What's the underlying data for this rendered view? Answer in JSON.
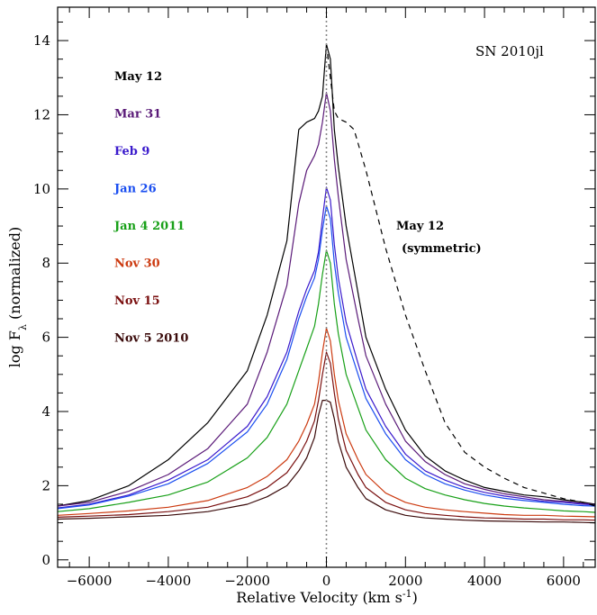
{
  "chart_data": {
    "type": "line",
    "title": "SN 2010jl",
    "xlabel": "Relative Velocity (km s",
    "xlabel_sup": "-1",
    "xlabel_end": ")",
    "ylabel": "log F",
    "ylabel_sub": "λ",
    "ylabel_end": " (normalized)",
    "xlim": [
      -6800,
      6800
    ],
    "ylim": [
      -0.2,
      14.9
    ],
    "xticks": [
      -6000,
      -4000,
      -2000,
      0,
      2000,
      4000,
      6000
    ],
    "xtick_labels": [
      "−6000",
      "−4000",
      "−2000",
      "0",
      "2000",
      "4000",
      "6000"
    ],
    "yticks": [
      0,
      2,
      4,
      6,
      8,
      10,
      12,
      14
    ],
    "ytick_labels": [
      "0",
      "2",
      "4",
      "6",
      "8",
      "10",
      "12",
      "14"
    ],
    "zero_line": 0,
    "annotation": {
      "line1": "May 12",
      "line2": "(symmetric)"
    },
    "series": [
      {
        "name": "May 12",
        "color": "#000000",
        "x": [
          -6800,
          -6000,
          -5000,
          -4000,
          -3000,
          -2000,
          -1500,
          -1000,
          -700,
          -500,
          -300,
          -200,
          -100,
          0,
          100,
          200,
          300,
          500,
          800,
          1000,
          1500,
          2000,
          2500,
          3000,
          3500,
          4000,
          4500,
          5000,
          5500,
          6000,
          6500,
          6800
        ],
        "y": [
          1.45,
          1.6,
          2.0,
          2.7,
          3.7,
          5.1,
          6.6,
          8.6,
          11.6,
          11.8,
          11.9,
          12.1,
          12.5,
          13.9,
          13.5,
          11.6,
          10.6,
          9.0,
          7.2,
          6.0,
          4.6,
          3.5,
          2.8,
          2.4,
          2.15,
          1.95,
          1.85,
          1.75,
          1.7,
          1.62,
          1.55,
          1.5
        ]
      },
      {
        "name": "Mar 31",
        "color": "#5a1a78",
        "x": [
          -6800,
          -6000,
          -5000,
          -4000,
          -3000,
          -2000,
          -1500,
          -1000,
          -700,
          -500,
          -300,
          -200,
          -100,
          0,
          100,
          200,
          300,
          500,
          800,
          1000,
          1500,
          2000,
          2500,
          3000,
          3500,
          4000,
          4500,
          5000,
          5500,
          6000,
          6500,
          6800
        ],
        "y": [
          1.45,
          1.55,
          1.85,
          2.3,
          3.0,
          4.2,
          5.6,
          7.4,
          9.6,
          10.5,
          10.9,
          11.2,
          11.8,
          12.6,
          12.1,
          10.8,
          9.8,
          8.1,
          6.5,
          5.5,
          4.2,
          3.2,
          2.65,
          2.3,
          2.05,
          1.9,
          1.78,
          1.7,
          1.62,
          1.58,
          1.52,
          1.5
        ]
      },
      {
        "name": "Feb 9",
        "color": "#3a1acc",
        "x": [
          -6800,
          -6000,
          -5000,
          -4000,
          -3000,
          -2000,
          -1500,
          -1000,
          -700,
          -500,
          -300,
          -200,
          -100,
          0,
          100,
          200,
          300,
          500,
          800,
          1000,
          1500,
          2000,
          2500,
          3000,
          3500,
          4000,
          4500,
          5000,
          5500,
          6000,
          6500,
          6800
        ],
        "y": [
          1.4,
          1.5,
          1.75,
          2.15,
          2.7,
          3.6,
          4.4,
          5.6,
          6.7,
          7.3,
          7.8,
          8.3,
          9.2,
          10.05,
          9.7,
          8.5,
          7.6,
          6.4,
          5.3,
          4.6,
          3.6,
          2.85,
          2.4,
          2.15,
          1.95,
          1.82,
          1.72,
          1.65,
          1.58,
          1.55,
          1.5,
          1.48
        ]
      },
      {
        "name": "Jan 26",
        "color": "#1a4ef0",
        "x": [
          -6800,
          -6000,
          -5000,
          -4000,
          -3000,
          -2000,
          -1500,
          -1000,
          -700,
          -500,
          -300,
          -200,
          -100,
          0,
          100,
          200,
          300,
          500,
          800,
          1000,
          1500,
          2000,
          2500,
          3000,
          3500,
          4000,
          4500,
          5000,
          5500,
          6000,
          6500,
          6800
        ],
        "y": [
          1.38,
          1.48,
          1.72,
          2.05,
          2.6,
          3.45,
          4.2,
          5.4,
          6.5,
          7.1,
          7.6,
          8.1,
          8.9,
          9.55,
          9.2,
          8.0,
          7.2,
          6.0,
          5.0,
          4.35,
          3.4,
          2.7,
          2.3,
          2.05,
          1.88,
          1.75,
          1.66,
          1.6,
          1.55,
          1.5,
          1.46,
          1.45
        ]
      },
      {
        "name": "Jan 4 2011",
        "color": "#18a018",
        "x": [
          -6800,
          -6000,
          -5000,
          -4000,
          -3000,
          -2000,
          -1500,
          -1000,
          -700,
          -500,
          -300,
          -200,
          -100,
          0,
          100,
          200,
          300,
          500,
          800,
          1000,
          1500,
          2000,
          2500,
          3000,
          3500,
          4000,
          4500,
          5000,
          5500,
          6000,
          6500,
          6800
        ],
        "y": [
          1.3,
          1.38,
          1.55,
          1.75,
          2.1,
          2.75,
          3.3,
          4.2,
          5.1,
          5.7,
          6.3,
          6.9,
          7.7,
          8.35,
          8.0,
          6.9,
          6.1,
          5.0,
          4.1,
          3.5,
          2.7,
          2.2,
          1.92,
          1.75,
          1.62,
          1.52,
          1.45,
          1.4,
          1.36,
          1.32,
          1.3,
          1.28
        ]
      },
      {
        "name": "Nov 30",
        "color": "#cc3a10",
        "x": [
          -6800,
          -6000,
          -5000,
          -4000,
          -3000,
          -2000,
          -1500,
          -1000,
          -700,
          -500,
          -300,
          -200,
          -100,
          0,
          100,
          200,
          300,
          500,
          800,
          1000,
          1500,
          2000,
          2500,
          3000,
          3500,
          4000,
          4500,
          5000,
          5500,
          6000,
          6500,
          6800
        ],
        "y": [
          1.2,
          1.25,
          1.32,
          1.42,
          1.6,
          1.95,
          2.25,
          2.7,
          3.2,
          3.65,
          4.2,
          4.8,
          5.6,
          6.25,
          5.9,
          5.0,
          4.3,
          3.4,
          2.7,
          2.3,
          1.8,
          1.55,
          1.42,
          1.35,
          1.3,
          1.26,
          1.22,
          1.2,
          1.2,
          1.18,
          1.17,
          1.16
        ]
      },
      {
        "name": "Nov 15",
        "color": "#7a1010",
        "x": [
          -6800,
          -6000,
          -5000,
          -4000,
          -3000,
          -2000,
          -1500,
          -1000,
          -700,
          -500,
          -300,
          -200,
          -100,
          0,
          100,
          200,
          300,
          500,
          800,
          1000,
          1500,
          2000,
          2500,
          3000,
          3500,
          4000,
          4500,
          5000,
          5500,
          6000,
          6500,
          6800
        ],
        "y": [
          1.15,
          1.18,
          1.22,
          1.3,
          1.42,
          1.7,
          1.95,
          2.35,
          2.8,
          3.2,
          3.75,
          4.3,
          5.0,
          5.6,
          5.3,
          4.5,
          3.8,
          2.95,
          2.3,
          1.95,
          1.55,
          1.35,
          1.25,
          1.2,
          1.16,
          1.13,
          1.12,
          1.1,
          1.1,
          1.08,
          1.08,
          1.07
        ]
      },
      {
        "name": "Nov 5 2010",
        "color": "#3a0a0a",
        "x": [
          -6800,
          -6000,
          -5000,
          -4000,
          -3000,
          -2000,
          -1500,
          -1000,
          -700,
          -500,
          -300,
          -200,
          -100,
          0,
          100,
          200,
          300,
          500,
          800,
          1000,
          1500,
          2000,
          2500,
          3000,
          3500,
          4000,
          4500,
          5000,
          5500,
          6000,
          6500,
          6800
        ],
        "y": [
          1.1,
          1.12,
          1.16,
          1.2,
          1.3,
          1.5,
          1.7,
          2.0,
          2.4,
          2.75,
          3.3,
          3.9,
          4.3,
          4.3,
          4.25,
          3.8,
          3.2,
          2.5,
          1.95,
          1.65,
          1.35,
          1.2,
          1.13,
          1.1,
          1.07,
          1.05,
          1.04,
          1.03,
          1.02,
          1.02,
          1.01,
          1.0
        ]
      },
      {
        "name": "May 12 (symmetric)",
        "color": "#000000",
        "dashed": true,
        "x": [
          0,
          200,
          300,
          500,
          700,
          1000,
          1500,
          2000,
          2500,
          3000,
          3500,
          4000,
          4500,
          5000,
          5500,
          6000,
          6500,
          6800
        ],
        "y": [
          13.9,
          12.1,
          11.9,
          11.8,
          11.6,
          10.5,
          8.4,
          6.6,
          5.1,
          3.7,
          2.9,
          2.5,
          2.2,
          1.95,
          1.8,
          1.65,
          1.55,
          1.45
        ]
      }
    ],
    "legend": [
      "May 12",
      "Mar 31",
      "Feb 9",
      "Jan 26",
      "Jan 4 2011",
      "Nov 30",
      "Nov 15",
      "Nov 5 2010"
    ],
    "legend_colors": [
      "#000000",
      "#5a1a78",
      "#3a1acc",
      "#1a4ef0",
      "#18a018",
      "#cc3a10",
      "#7a1010",
      "#3a0a0a"
    ],
    "legend_placement": "upper-left",
    "grid": false
  }
}
